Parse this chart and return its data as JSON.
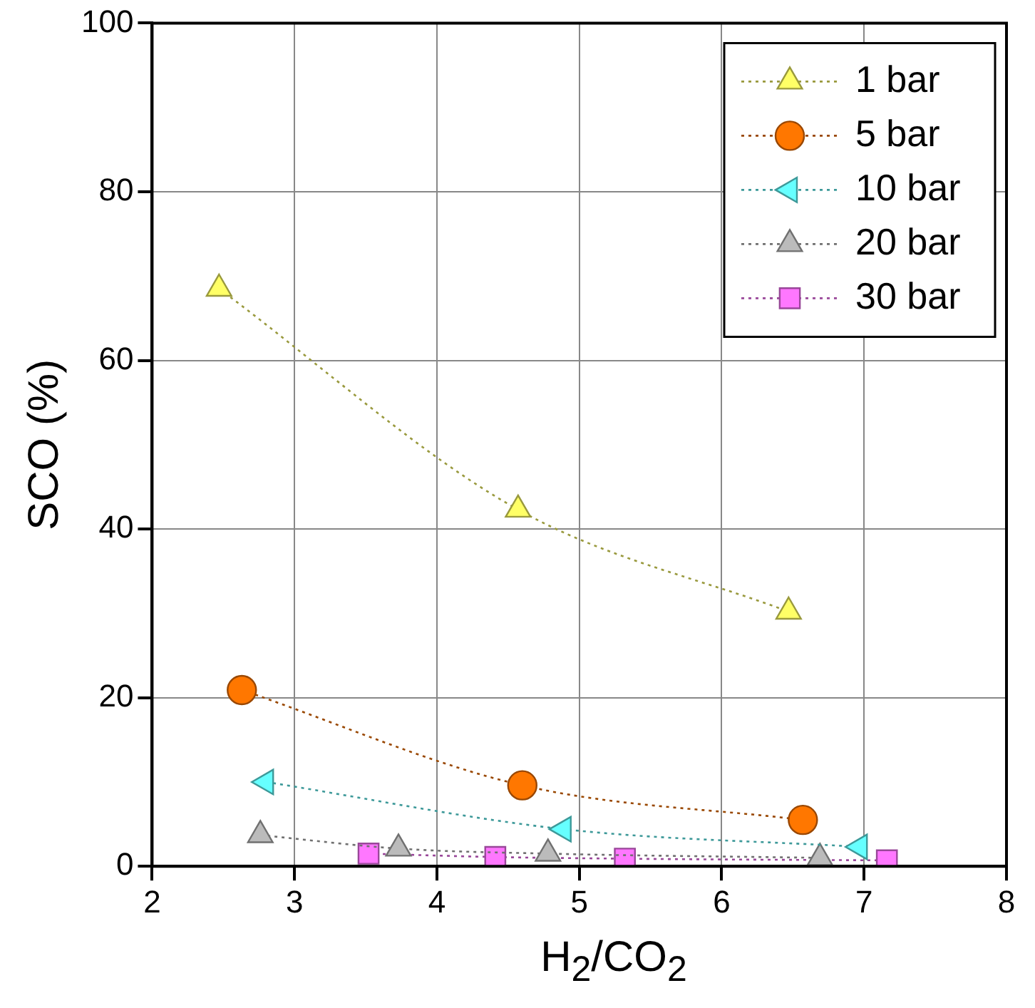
{
  "chart_data": {
    "type": "line",
    "xlabel": "H$_{2}$/CO$_{2}$",
    "ylabel": "SCO (%)",
    "xlim": [
      2,
      8
    ],
    "xticks": [
      2,
      3,
      4,
      5,
      6,
      7,
      8
    ],
    "ylim": [
      0,
      100
    ],
    "yticks": [
      0,
      20,
      40,
      60,
      80,
      100
    ],
    "grid": true,
    "legend": "top right",
    "line_style": "dotted",
    "series": [
      {
        "name": "1 bar",
        "color": "#ffff66",
        "marker": "triangle",
        "x": [
          2.47,
          4.57,
          6.47
        ],
        "values": [
          68.5,
          42.3,
          30.2
        ]
      },
      {
        "name": "5 bar",
        "color": "#ff7700",
        "marker": "circle",
        "x": [
          2.63,
          4.6,
          6.57
        ],
        "values": [
          20.9,
          9.6,
          5.5
        ]
      },
      {
        "name": "10 bar",
        "color": "#66ffff",
        "marker": "triangle-left",
        "x": [
          2.8,
          4.89,
          6.97
        ],
        "values": [
          10,
          4.4,
          2.3
        ]
      },
      {
        "name": "20 bar",
        "color": "#bbbbbb",
        "marker": "triangle",
        "x": [
          2.76,
          3.73,
          4.78,
          6.69
        ],
        "values": [
          3.7,
          2.1,
          1.5,
          1
        ]
      },
      {
        "name": "30 bar",
        "color": "#ff77ff",
        "marker": "square",
        "x": [
          3.52,
          4.41,
          5.32,
          7.16
        ],
        "values": [
          1.5,
          1.1,
          0.9,
          0.7
        ]
      }
    ]
  }
}
